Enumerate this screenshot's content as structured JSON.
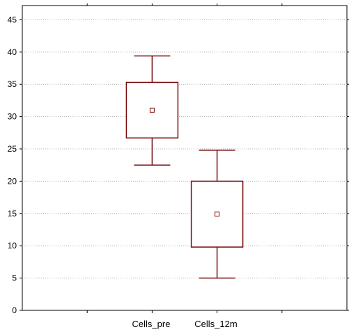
{
  "chart_data": {
    "type": "box",
    "categories": [
      "Cells_pre",
      "Cells_12m"
    ],
    "series": [
      {
        "category": "Cells_pre",
        "whisker_low": 22.5,
        "q1": 26.7,
        "median": 31.0,
        "q3": 35.3,
        "whisker_high": 39.4
      },
      {
        "category": "Cells_12m",
        "whisker_low": 5.0,
        "q1": 9.8,
        "median": 14.9,
        "q3": 20.0,
        "whisker_high": 24.8
      }
    ],
    "y_ticks": [
      "0",
      "5",
      "10",
      "15",
      "20",
      "25",
      "30",
      "35",
      "40",
      "45"
    ],
    "ylim": [
      0,
      47.2
    ],
    "grid": true,
    "colors": {
      "box": "#7a0c0c",
      "grid": "#b0b0b0",
      "axis": "#000000"
    }
  }
}
